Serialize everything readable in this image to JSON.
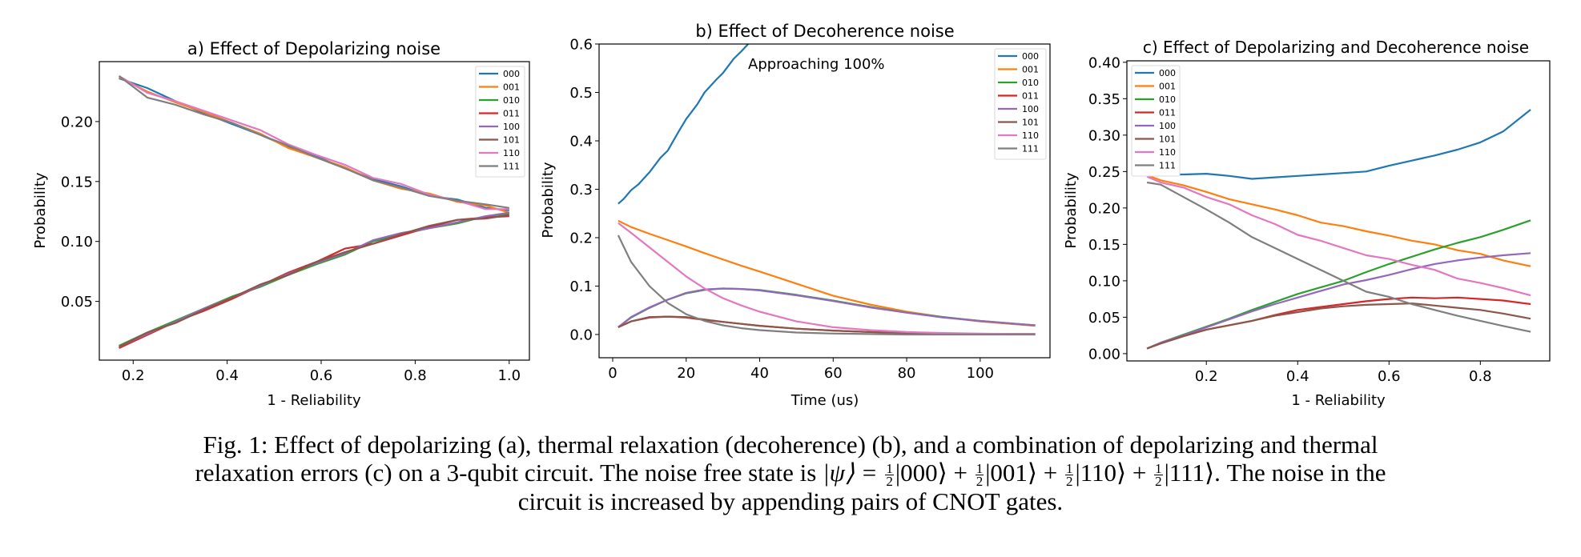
{
  "chart_data": [
    {
      "type": "line",
      "title": "a) Effect of Depolarizing noise",
      "xlabel": "1 - Reliability",
      "ylabel": "Probability",
      "xlim": [
        0.128,
        1.043
      ],
      "ylim": [
        0.001,
        0.25
      ],
      "xticks": [
        0.2,
        0.4,
        0.6,
        0.8,
        1.0
      ],
      "xtick_labels": [
        "0.2",
        "0.4",
        "0.6",
        "0.8",
        "1.0"
      ],
      "yticks": [
        0.05,
        0.1,
        0.15,
        0.2
      ],
      "ytick_labels": [
        "0.05",
        "0.10",
        "0.15",
        "0.20"
      ],
      "grid": false,
      "legend_position": "top-right",
      "x": [
        0.17,
        0.23,
        0.29,
        0.35,
        0.41,
        0.47,
        0.53,
        0.59,
        0.65,
        0.71,
        0.77,
        0.83,
        0.89,
        0.95,
        1.0
      ],
      "series": [
        {
          "name": "000",
          "color": "#1f77b4",
          "y": [
            0.236,
            0.228,
            0.217,
            0.207,
            0.198,
            0.189,
            0.179,
            0.171,
            0.161,
            0.152,
            0.146,
            0.138,
            0.135,
            0.128,
            0.126
          ]
        },
        {
          "name": "001",
          "color": "#ff7f0e",
          "y": [
            0.237,
            0.225,
            0.216,
            0.208,
            0.199,
            0.19,
            0.178,
            0.17,
            0.162,
            0.151,
            0.144,
            0.14,
            0.133,
            0.13,
            0.124
          ]
        },
        {
          "name": "010",
          "color": "#2ca02c",
          "y": [
            0.013,
            0.024,
            0.034,
            0.044,
            0.054,
            0.062,
            0.072,
            0.081,
            0.089,
            0.1,
            0.106,
            0.111,
            0.115,
            0.121,
            0.123
          ]
        },
        {
          "name": "011",
          "color": "#d62728",
          "y": [
            0.011,
            0.022,
            0.033,
            0.042,
            0.052,
            0.063,
            0.074,
            0.083,
            0.094,
            0.098,
            0.105,
            0.112,
            0.118,
            0.12,
            0.121
          ]
        },
        {
          "name": "100",
          "color": "#9467bd",
          "y": [
            0.012,
            0.023,
            0.033,
            0.044,
            0.053,
            0.063,
            0.073,
            0.082,
            0.09,
            0.101,
            0.107,
            0.111,
            0.116,
            0.121,
            0.124
          ]
        },
        {
          "name": "101",
          "color": "#8c564b",
          "y": [
            0.012,
            0.024,
            0.032,
            0.043,
            0.053,
            0.064,
            0.072,
            0.083,
            0.091,
            0.098,
            0.106,
            0.113,
            0.118,
            0.119,
            0.122
          ]
        },
        {
          "name": "110",
          "color": "#e377c2",
          "y": [
            0.238,
            0.224,
            0.217,
            0.209,
            0.201,
            0.193,
            0.181,
            0.172,
            0.164,
            0.153,
            0.148,
            0.139,
            0.134,
            0.127,
            0.127
          ]
        },
        {
          "name": "111",
          "color": "#7f7f7f",
          "y": [
            0.238,
            0.22,
            0.214,
            0.206,
            0.199,
            0.189,
            0.18,
            0.17,
            0.161,
            0.151,
            0.145,
            0.138,
            0.134,
            0.131,
            0.128
          ]
        }
      ]
    },
    {
      "type": "line",
      "title": "b) Effect of Decoherence noise",
      "xlabel": "Time (us)",
      "ylabel": "Probability",
      "xlim": [
        -3.7,
        119
      ],
      "ylim": [
        -0.048,
        0.6
      ],
      "xticks": [
        0,
        20,
        40,
        60,
        80,
        100
      ],
      "xtick_labels": [
        "0",
        "20",
        "40",
        "60",
        "80",
        "100"
      ],
      "yticks": [
        0.0,
        0.1,
        0.2,
        0.3,
        0.4,
        0.5,
        0.6
      ],
      "ytick_labels": [
        "0.0",
        "0.1",
        "0.2",
        "0.3",
        "0.4",
        "0.5",
        "0.6"
      ],
      "grid": false,
      "legend_position": "top-right",
      "annotation": "Approaching 100%",
      "x": [
        1.5,
        5,
        10,
        15,
        20,
        25,
        30,
        35,
        40,
        50,
        60,
        70,
        80,
        90,
        100,
        110,
        115
      ],
      "series": [
        {
          "name": "000",
          "color": "#1f77b4",
          "x": [
            1.5,
            3,
            5,
            7,
            10,
            13,
            15,
            18,
            20,
            23,
            25,
            28,
            30,
            33,
            35,
            37.5
          ],
          "y": [
            0.27,
            0.28,
            0.298,
            0.31,
            0.335,
            0.365,
            0.38,
            0.42,
            0.445,
            0.475,
            0.5,
            0.525,
            0.54,
            0.57,
            0.585,
            0.605
          ]
        },
        {
          "name": "001",
          "color": "#ff7f0e",
          "y": [
            0.235,
            0.222,
            0.208,
            0.195,
            0.182,
            0.168,
            0.155,
            0.142,
            0.13,
            0.105,
            0.08,
            0.062,
            0.047,
            0.036,
            0.027,
            0.021,
            0.018
          ]
        },
        {
          "name": "010",
          "color": "#2ca02c",
          "y": [
            0.015,
            0.035,
            0.055,
            0.072,
            0.085,
            0.092,
            0.095,
            0.094,
            0.092,
            0.082,
            0.07,
            0.057,
            0.045,
            0.036,
            0.028,
            0.022,
            0.019
          ]
        },
        {
          "name": "011",
          "color": "#d62728",
          "y": [
            0.015,
            0.027,
            0.035,
            0.037,
            0.035,
            0.03,
            0.026,
            0.022,
            0.018,
            0.012,
            0.008,
            0.005,
            0.003,
            0.002,
            0.001,
            0.001,
            0.001
          ]
        },
        {
          "name": "100",
          "color": "#9467bd",
          "y": [
            0.015,
            0.036,
            0.056,
            0.072,
            0.086,
            0.093,
            0.095,
            0.094,
            0.091,
            0.081,
            0.069,
            0.056,
            0.045,
            0.035,
            0.028,
            0.022,
            0.019
          ]
        },
        {
          "name": "101",
          "color": "#8c564b",
          "y": [
            0.015,
            0.027,
            0.036,
            0.037,
            0.036,
            0.031,
            0.026,
            0.022,
            0.018,
            0.012,
            0.008,
            0.005,
            0.003,
            0.002,
            0.001,
            0.001,
            0.001
          ]
        },
        {
          "name": "110",
          "color": "#e377c2",
          "y": [
            0.23,
            0.21,
            0.18,
            0.15,
            0.12,
            0.095,
            0.075,
            0.06,
            0.047,
            0.027,
            0.015,
            0.009,
            0.005,
            0.003,
            0.002,
            0.001,
            0.001
          ]
        },
        {
          "name": "111",
          "color": "#7f7f7f",
          "y": [
            0.205,
            0.15,
            0.1,
            0.065,
            0.042,
            0.028,
            0.019,
            0.013,
            0.009,
            0.004,
            0.002,
            0.001,
            0.0,
            0.0,
            0.0,
            0.0,
            0.0
          ]
        }
      ]
    },
    {
      "type": "line",
      "title": "c) Effect of Depolarizing and Decoherence noise",
      "xlabel": "1 - Reliability",
      "ylabel": "Probability",
      "xlim": [
        0.026,
        0.952
      ],
      "ylim": [
        -0.01,
        0.402
      ],
      "xticks": [
        0.2,
        0.4,
        0.6,
        0.8
      ],
      "xtick_labels": [
        "0.2",
        "0.4",
        "0.6",
        "0.8"
      ],
      "yticks": [
        0.0,
        0.05,
        0.1,
        0.15,
        0.2,
        0.25,
        0.3,
        0.35,
        0.4
      ],
      "ytick_labels": [
        "0.00",
        "0.05",
        "0.10",
        "0.15",
        "0.20",
        "0.25",
        "0.30",
        "0.35",
        "0.40"
      ],
      "grid": false,
      "legend_position": "top-left",
      "x": [
        0.07,
        0.1,
        0.15,
        0.2,
        0.25,
        0.3,
        0.35,
        0.4,
        0.45,
        0.5,
        0.55,
        0.6,
        0.65,
        0.7,
        0.75,
        0.8,
        0.85,
        0.91
      ],
      "series": [
        {
          "name": "000",
          "color": "#1f77b4",
          "y": [
            0.248,
            0.246,
            0.246,
            0.247,
            0.244,
            0.24,
            0.242,
            0.244,
            0.246,
            0.248,
            0.25,
            0.258,
            0.265,
            0.272,
            0.28,
            0.29,
            0.305,
            0.335
          ]
        },
        {
          "name": "001",
          "color": "#ff7f0e",
          "y": [
            0.245,
            0.238,
            0.231,
            0.222,
            0.212,
            0.205,
            0.198,
            0.19,
            0.18,
            0.175,
            0.168,
            0.162,
            0.155,
            0.15,
            0.142,
            0.137,
            0.128,
            0.12
          ]
        },
        {
          "name": "010",
          "color": "#2ca02c",
          "y": [
            0.007,
            0.015,
            0.026,
            0.037,
            0.048,
            0.06,
            0.071,
            0.082,
            0.091,
            0.1,
            0.112,
            0.123,
            0.133,
            0.143,
            0.152,
            0.16,
            0.17,
            0.183
          ]
        },
        {
          "name": "011",
          "color": "#d62728",
          "y": [
            0.007,
            0.014,
            0.024,
            0.033,
            0.039,
            0.045,
            0.053,
            0.06,
            0.064,
            0.068,
            0.072,
            0.075,
            0.077,
            0.076,
            0.077,
            0.075,
            0.073,
            0.068
          ]
        },
        {
          "name": "100",
          "color": "#9467bd",
          "y": [
            0.007,
            0.015,
            0.025,
            0.036,
            0.047,
            0.058,
            0.068,
            0.077,
            0.086,
            0.095,
            0.101,
            0.108,
            0.116,
            0.123,
            0.128,
            0.132,
            0.135,
            0.138
          ]
        },
        {
          "name": "101",
          "color": "#8c564b",
          "y": [
            0.007,
            0.014,
            0.024,
            0.033,
            0.039,
            0.045,
            0.052,
            0.057,
            0.062,
            0.065,
            0.067,
            0.068,
            0.069,
            0.066,
            0.063,
            0.06,
            0.055,
            0.048
          ]
        },
        {
          "name": "110",
          "color": "#e377c2",
          "y": [
            0.243,
            0.235,
            0.228,
            0.215,
            0.205,
            0.19,
            0.178,
            0.163,
            0.155,
            0.145,
            0.135,
            0.13,
            0.122,
            0.115,
            0.103,
            0.097,
            0.09,
            0.08
          ]
        },
        {
          "name": "111",
          "color": "#7f7f7f",
          "y": [
            0.235,
            0.232,
            0.215,
            0.198,
            0.18,
            0.16,
            0.145,
            0.13,
            0.115,
            0.1,
            0.085,
            0.078,
            0.068,
            0.06,
            0.052,
            0.045,
            0.038,
            0.03
          ]
        }
      ]
    }
  ],
  "caption": {
    "line1": "Fig. 1: Effect of depolarizing (a), thermal relaxation (decoherence) (b), and a combination of depolarizing and thermal",
    "line2_prefix": "relaxation errors (c) on a 3-qubit circuit. The noise free state is ",
    "psi": "|ψ⟩ = ",
    "half_num": "1",
    "half_den": "2",
    "ket_000": "|000⟩ + ",
    "ket_001": "|001⟩ + ",
    "ket_110": "|110⟩ + ",
    "ket_111": "|111⟩",
    "line2_suffix": ". The noise in the",
    "line3": "circuit is increased by appending pairs of CNOT gates."
  }
}
